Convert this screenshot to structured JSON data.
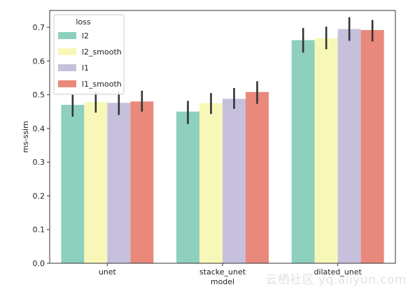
{
  "chart_data": {
    "type": "bar",
    "title": "",
    "xlabel": "model",
    "ylabel": "ms-ssim",
    "categories": [
      "unet",
      "stacke_unet",
      "dilated_unet"
    ],
    "ylim": [
      0,
      0.75
    ],
    "yticks": [
      0.0,
      0.1,
      0.2,
      0.3,
      0.4,
      0.5,
      0.6,
      0.7
    ],
    "ytick_labels": [
      "0.0",
      "0.1",
      "0.2",
      "0.3",
      "0.4",
      "0.5",
      "0.6",
      "0.7"
    ],
    "grid": false,
    "legend": {
      "title": "loss",
      "placement": "top-left"
    },
    "series": [
      {
        "name": "l2",
        "color": "#8ecfbe",
        "values": [
          0.47,
          0.45,
          0.662
        ],
        "err_low": [
          0.435,
          0.413,
          0.625
        ],
        "err_high": [
          0.5,
          0.482,
          0.698
        ]
      },
      {
        "name": "l2_smooth",
        "color": "#f7f7b8",
        "values": [
          0.478,
          0.475,
          0.668
        ],
        "err_low": [
          0.447,
          0.443,
          0.635
        ],
        "err_high": [
          0.51,
          0.505,
          0.702
        ]
      },
      {
        "name": "l1",
        "color": "#c6c0dc",
        "values": [
          0.476,
          0.488,
          0.695
        ],
        "err_low": [
          0.44,
          0.458,
          0.66
        ],
        "err_high": [
          0.51,
          0.52,
          0.73
        ]
      },
      {
        "name": "l1_smooth",
        "color": "#e8897b",
        "values": [
          0.48,
          0.508,
          0.692
        ],
        "err_low": [
          0.45,
          0.473,
          0.658
        ],
        "err_high": [
          0.512,
          0.54,
          0.722
        ]
      }
    ],
    "error_bar_color": "#333333"
  },
  "watermark": "云栖社区 yq.aliyun.com"
}
